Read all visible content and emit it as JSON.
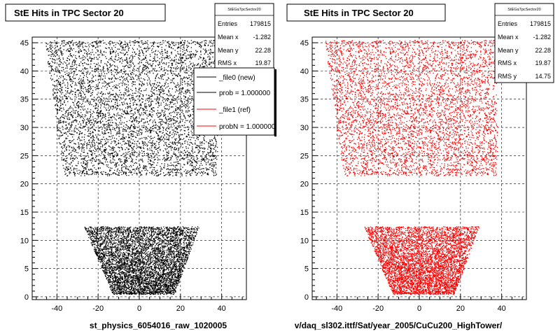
{
  "footer_text": "",
  "chart_data": [
    {
      "type": "scatter",
      "title": "StE Hits in TPC Sector 20",
      "xlabel": "st_physics_6054016_raw_1020005",
      "ylabel": "",
      "xlim": [
        -52,
        52
      ],
      "ylim": [
        -0.5,
        46
      ],
      "x_ticks": [
        -40,
        -20,
        0,
        20,
        40
      ],
      "y_ticks": [
        0,
        5,
        10,
        15,
        20,
        25,
        30,
        35,
        40,
        45
      ],
      "grid": true,
      "marker_color": "#000000",
      "stats": {
        "name": "StEGaTpcSector20",
        "rows": [
          {
            "label": "Entries",
            "value": "179815"
          },
          {
            "label": "Mean x",
            "value": "-1.282"
          },
          {
            "label": "Mean y",
            "value": "22.28"
          },
          {
            "label": "RMS x",
            "value": "19.87"
          }
        ]
      },
      "legend": {
        "placement": "top-right",
        "entries": [
          {
            "label": "_file0 (new)",
            "color": "#000000"
          },
          {
            "label": "prob = 1.000000",
            "color": "#000000"
          },
          {
            "label": "_file1 (ref)",
            "color": "#ff0000"
          },
          {
            "label": "probN = 1.000000",
            "color": "#ff0000"
          }
        ]
      },
      "regions": [
        {
          "y_range": [
            0.5,
            12.5
          ],
          "bottom_x": [
            -13,
            17
          ],
          "top_x": [
            -27,
            29
          ]
        },
        {
          "y_range": [
            21.5,
            45.5
          ],
          "bottom_x": [
            -37,
            38
          ],
          "top_x": [
            -46,
            37
          ]
        }
      ]
    },
    {
      "type": "scatter",
      "title": "StE Hits in TPC Sector 20",
      "xlabel": "v/daq_sl302.ittf/Sat/year_2005/CuCu200_HighTower/",
      "ylabel": "",
      "xlim": [
        -52,
        52
      ],
      "ylim": [
        -0.5,
        46
      ],
      "x_ticks": [
        -40,
        -20,
        0,
        20,
        40
      ],
      "y_ticks": [
        0,
        5,
        10,
        15,
        20,
        25,
        30,
        35,
        40,
        45
      ],
      "grid": true,
      "marker_color": "#ff0000",
      "stats": {
        "name": "StEGaTpcSector20",
        "rows": [
          {
            "label": "Entries",
            "value": "179815"
          },
          {
            "label": "Mean x",
            "value": "-1.282"
          },
          {
            "label": "Mean y",
            "value": "22.28"
          },
          {
            "label": "RMS x",
            "value": "19.87"
          },
          {
            "label": "RMS y",
            "value": "14.75"
          }
        ]
      },
      "regions": [
        {
          "y_range": [
            0.5,
            12.5
          ],
          "bottom_x": [
            -13,
            17
          ],
          "top_x": [
            -27,
            29
          ]
        },
        {
          "y_range": [
            21.5,
            45.5
          ],
          "bottom_x": [
            -37,
            38
          ],
          "top_x": [
            -46,
            37
          ]
        }
      ]
    }
  ]
}
